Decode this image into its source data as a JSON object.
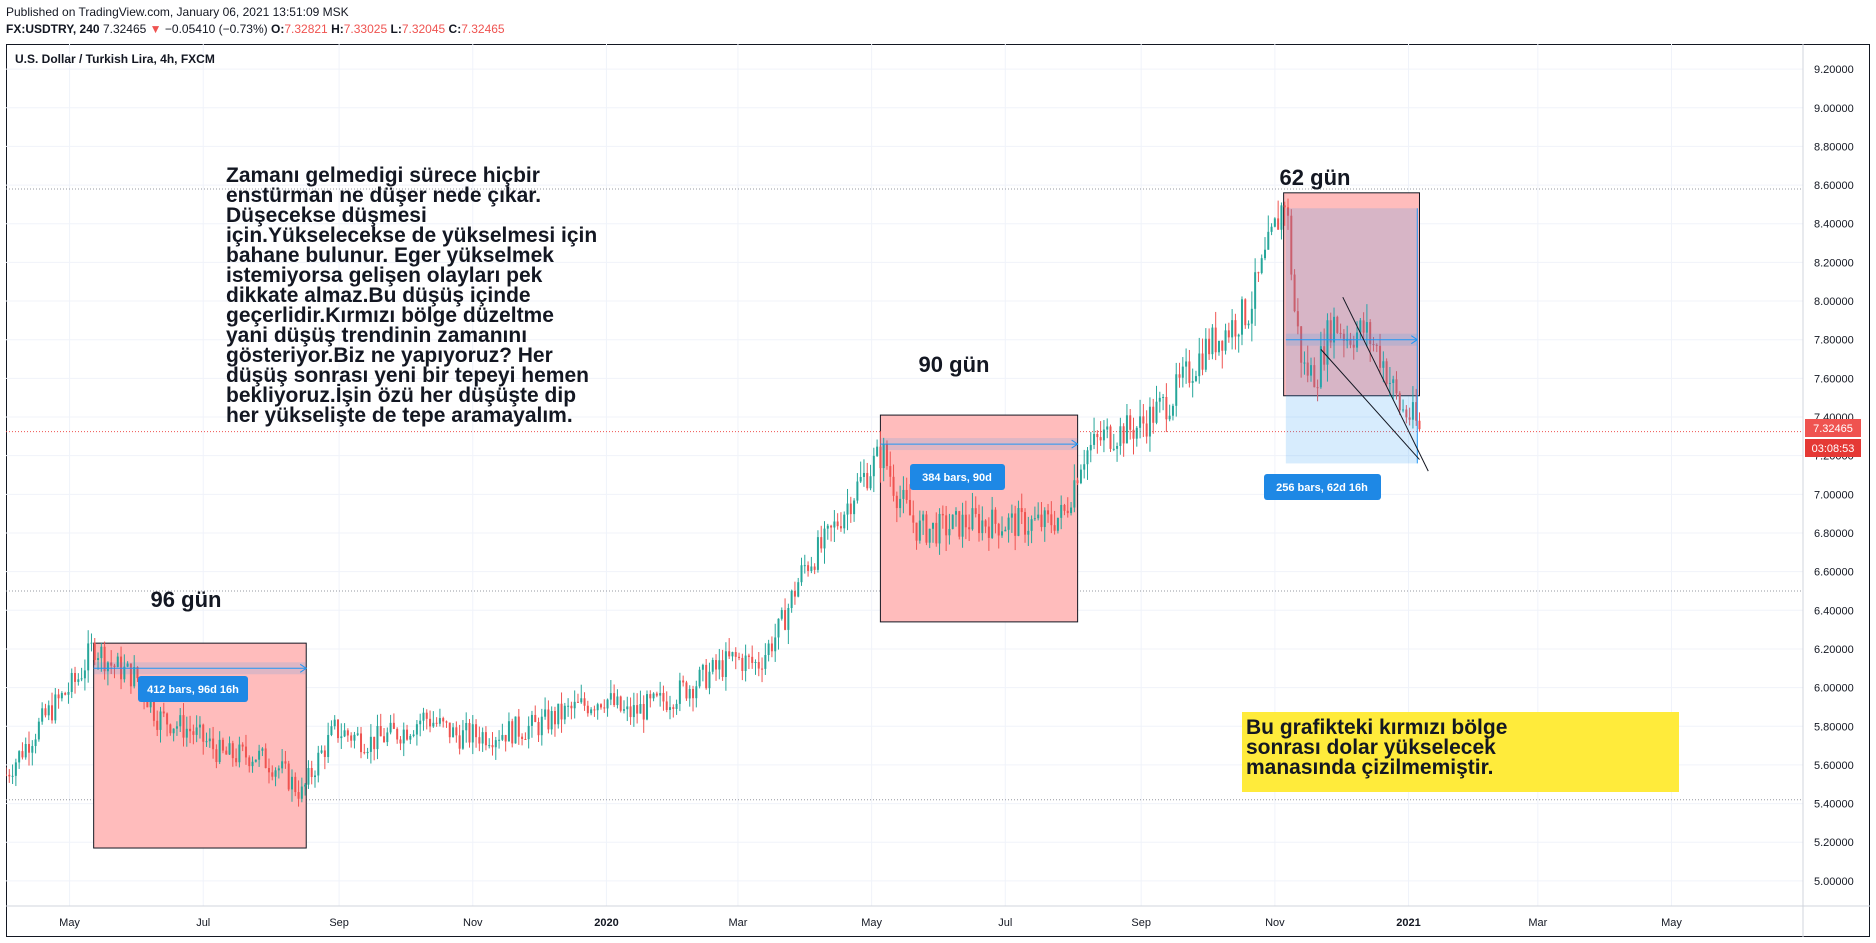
{
  "publish_info": "Published on TradingView.com, January 06, 2021 13:51:09 MSK",
  "quote": {
    "symbol": "FX:USDTRY, 240",
    "last": "7.32465",
    "change": "−0.05410 (−0.73%)",
    "open_label": "O:",
    "open": "7.32821",
    "high_label": "H:",
    "high": "7.33025",
    "low_label": "L:",
    "low": "7.32045",
    "close_label": "C:",
    "close": "7.32465"
  },
  "chart_title": "U.S. Dollar / Turkish Lira, 4h, FXCM",
  "price_tag": "7.32465",
  "countdown_tag": "03:08:53",
  "colors": {
    "up": "#26a69a",
    "down": "#ef5350",
    "zone": "#ffbcbc",
    "blue": "#2196f3",
    "note_bg": "#ffeb3b",
    "countdown_bg": "#e53935"
  },
  "annotations": {
    "main_text": "Zamanı gelmedigi sürece hiçbir enstürman ne düşer nede çıkar. Düşecekse düşmesi için.Yükselecekse de yükselmesi için bahane bulunur. Eger yükselmek istemiyorsa gelişen olayları pek dikkate almaz.Bu düşüş içinde geçerlidir.Kırmızı bölge düzeltme yani düşüş trendinin zamanını gösteriyor.Biz ne yapıyoruz? Her düşüş sonrası yeni bir tepeyi hemen bekliyoruz.İşin özü her düşüşte dip her yükselişte de tepe aramayalım.",
    "note_text": "Bu grafikteki kırmızı bölge sonrası dolar yükselecek manasında çizilmemiştir.",
    "zone_labels": [
      "96 gün",
      "90 gün",
      "62 gün"
    ],
    "range_labels": [
      "412 bars, 96d 16h",
      "384 bars, 90d",
      "256 bars, 62d 16h"
    ]
  },
  "chart_data": {
    "type": "candlestick",
    "title": "U.S. Dollar / Turkish Lira, 4h, FXCM",
    "x_ticks": [
      "May",
      "Jul",
      "Sep",
      "Nov",
      "2020",
      "Mar",
      "May",
      "Jul",
      "Sep",
      "Nov",
      "2021",
      "Mar",
      "May"
    ],
    "y_ticks": [
      "9.20000",
      "9.00000",
      "8.80000",
      "8.60000",
      "8.40000",
      "8.20000",
      "8.00000",
      "7.80000",
      "7.60000",
      "7.40000",
      "7.20000",
      "7.00000",
      "6.80000",
      "6.60000",
      "6.40000",
      "6.20000",
      "6.00000",
      "5.80000",
      "5.60000",
      "5.40000",
      "5.20000",
      "5.00000"
    ],
    "ylim": [
      4.87,
      9.33
    ],
    "x_range": [
      "2019-04-02",
      "2021-06-30"
    ],
    "price_path": [
      [
        "2019-04-02",
        5.55
      ],
      [
        "2019-04-20",
        5.85
      ],
      [
        "2019-05-05",
        6.05
      ],
      [
        "2019-05-12",
        6.22
      ],
      [
        "2019-05-20",
        6.12
      ],
      [
        "2019-06-01",
        6.05
      ],
      [
        "2019-06-10",
        5.85
      ],
      [
        "2019-06-25",
        5.78
      ],
      [
        "2019-07-10",
        5.65
      ],
      [
        "2019-07-25",
        5.65
      ],
      [
        "2019-08-05",
        5.58
      ],
      [
        "2019-08-15",
        5.45
      ],
      [
        "2019-08-22",
        5.62
      ],
      [
        "2019-08-30",
        5.78
      ],
      [
        "2019-09-15",
        5.72
      ],
      [
        "2019-10-01",
        5.78
      ],
      [
        "2019-10-10",
        5.85
      ],
      [
        "2019-10-25",
        5.75
      ],
      [
        "2019-11-10",
        5.76
      ],
      [
        "2019-11-30",
        5.8
      ],
      [
        "2019-12-15",
        5.88
      ],
      [
        "2019-12-31",
        5.95
      ],
      [
        "2020-01-10",
        5.86
      ],
      [
        "2020-01-25",
        5.92
      ],
      [
        "2020-02-10",
        6.02
      ],
      [
        "2020-02-28",
        6.15
      ],
      [
        "2020-03-10",
        6.12
      ],
      [
        "2020-03-20",
        6.3
      ],
      [
        "2020-03-31",
        6.62
      ],
      [
        "2020-04-10",
        6.75
      ],
      [
        "2020-04-25",
        7.05
      ],
      [
        "2020-05-06",
        7.22
      ],
      [
        "2020-05-12",
        7.02
      ],
      [
        "2020-05-22",
        6.82
      ],
      [
        "2020-06-01",
        6.82
      ],
      [
        "2020-06-15",
        6.86
      ],
      [
        "2020-07-01",
        6.85
      ],
      [
        "2020-07-20",
        6.85
      ],
      [
        "2020-07-28",
        6.9
      ],
      [
        "2020-08-05",
        7.2
      ],
      [
        "2020-08-15",
        7.3
      ],
      [
        "2020-08-31",
        7.35
      ],
      [
        "2020-09-15",
        7.5
      ],
      [
        "2020-09-30",
        7.75
      ],
      [
        "2020-10-10",
        7.85
      ],
      [
        "2020-10-20",
        7.95
      ],
      [
        "2020-10-30",
        8.3
      ],
      [
        "2020-11-06",
        8.55
      ],
      [
        "2020-11-10",
        7.95
      ],
      [
        "2020-11-14",
        7.65
      ],
      [
        "2020-11-20",
        7.62
      ],
      [
        "2020-11-27",
        7.9
      ],
      [
        "2020-12-04",
        7.82
      ],
      [
        "2020-12-12",
        7.85
      ],
      [
        "2020-12-20",
        7.7
      ],
      [
        "2020-12-28",
        7.45
      ],
      [
        "2021-01-04",
        7.38
      ],
      [
        "2021-01-06",
        7.32
      ]
    ],
    "zones": [
      {
        "from": "2019-05-12",
        "to": "2019-08-17",
        "top": 6.23,
        "bottom": 5.17,
        "label": "96 gün"
      },
      {
        "from": "2020-05-05",
        "to": "2020-08-03",
        "top": 7.41,
        "bottom": 6.34,
        "label": "90 gün"
      },
      {
        "from": "2020-11-05",
        "to": "2021-01-06",
        "top": 8.56,
        "bottom": 7.51,
        "label": "62 gün"
      }
    ],
    "horizontal_levels": [
      8.58,
      7.32465,
      6.5,
      5.42
    ]
  }
}
